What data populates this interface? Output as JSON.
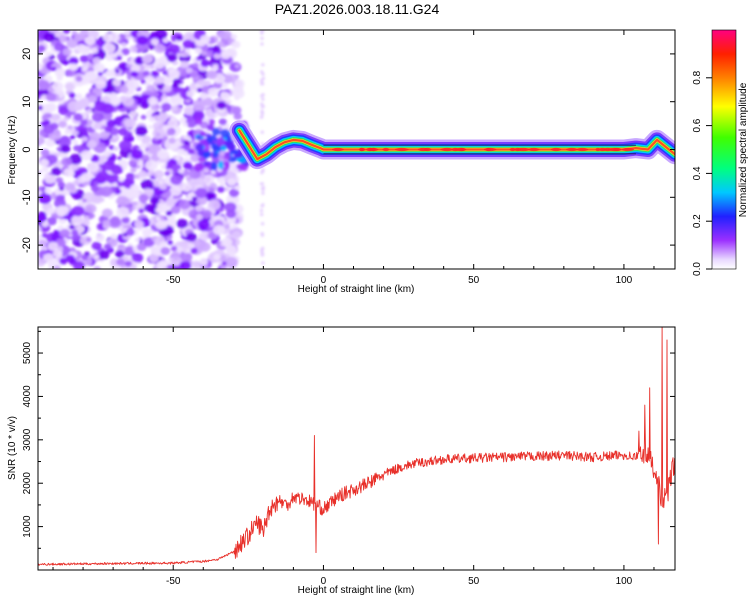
{
  "title": "PAZ1.2026.003.18.11.G24",
  "colors": {
    "snr_line": "#e8302a",
    "ridge": "#2b1e6e",
    "axis": "#000000"
  },
  "chart_data": [
    {
      "type": "heatmap",
      "name": "spectrogram",
      "xlabel": "Height of straight line (km)",
      "ylabel": "Frequency (Hz)",
      "xlim": [
        -95,
        117
      ],
      "ylim": [
        -25,
        25
      ],
      "xticks": [
        -50,
        0,
        50,
        100
      ],
      "yticks": [
        -20,
        -10,
        0,
        10,
        20
      ],
      "colorbar": {
        "label": "Normalized spectral amplitude",
        "range": [
          0,
          1
        ],
        "ticks": [
          "0.0",
          "0.2",
          "0.4",
          "0.6",
          "0.8"
        ],
        "tick_values": [
          0.0,
          0.2,
          0.4,
          0.6,
          0.8
        ],
        "colormap": "hsv"
      },
      "ridge": {
        "x": [
          -28,
          -25,
          -22,
          -19,
          -16,
          -13,
          -10,
          -7,
          -4,
          -1,
          0,
          20,
          40,
          60,
          80,
          100,
          104,
          108,
          111,
          114,
          117
        ],
        "y": [
          4,
          1,
          -2,
          -1,
          0.5,
          1.5,
          2,
          1.8,
          1,
          0.3,
          0,
          0,
          0,
          0,
          0,
          0,
          0.3,
          0,
          2,
          0.5,
          -1
        ]
      }
    },
    {
      "type": "line",
      "name": "snr",
      "xlabel": "Height of straight line (km)",
      "ylabel": "SNR (10 * v/v)",
      "xlim": [
        -95,
        117
      ],
      "ylim": [
        0,
        5600
      ],
      "xticks": [
        -50,
        0,
        50,
        100
      ],
      "yticks": [
        1000,
        2000,
        3000,
        4000,
        5000
      ],
      "envelope": {
        "x": [
          -95,
          -70,
          -50,
          -40,
          -35,
          -30,
          -25,
          -22,
          -20,
          -18,
          -15,
          -12,
          -10,
          -5,
          0,
          5,
          10,
          15,
          20,
          25,
          30,
          40,
          50,
          60,
          70,
          80,
          90,
          100,
          104,
          107,
          109,
          111,
          112,
          113,
          114,
          115,
          116,
          117
        ],
        "y": [
          130,
          150,
          160,
          200,
          250,
          420,
          800,
          1100,
          900,
          1400,
          1600,
          1500,
          1700,
          1600,
          1400,
          1700,
          1850,
          2000,
          2200,
          2350,
          2450,
          2550,
          2580,
          2600,
          2620,
          2640,
          2600,
          2650,
          2600,
          2700,
          2500,
          2200,
          1800,
          1500,
          1700,
          1900,
          2300,
          2500
        ]
      },
      "spikes": [
        {
          "x": -3,
          "y": 3100
        },
        {
          "x": -2.4,
          "y": 400
        },
        {
          "x": 105,
          "y": 3200
        },
        {
          "x": 107,
          "y": 3800
        },
        {
          "x": 108.5,
          "y": 4200
        },
        {
          "x": 111.5,
          "y": 600
        },
        {
          "x": 112.8,
          "y": 5600
        },
        {
          "x": 114.4,
          "y": 5300
        }
      ]
    }
  ]
}
